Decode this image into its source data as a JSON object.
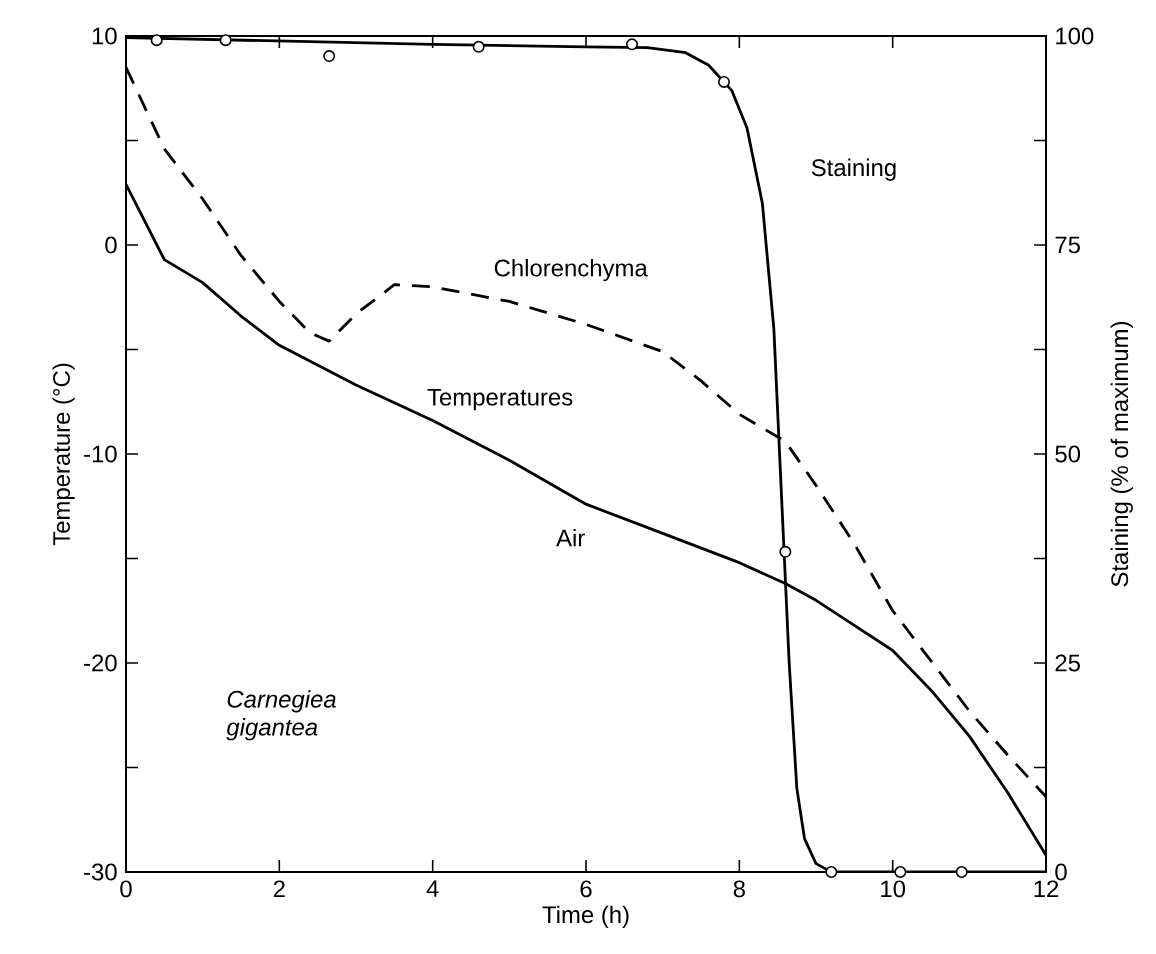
{
  "chart_data": {
    "type": "line",
    "xlabel": "Time (h)",
    "ylabel": "Temperature (°C)",
    "y2label": "Staining (% of maximum)",
    "xlim": [
      0,
      12
    ],
    "xticks": [
      0,
      2,
      4,
      6,
      8,
      10,
      12
    ],
    "ylim": [
      -30,
      10
    ],
    "yticks": [
      -30,
      {
        "value": -25,
        "label": null
      },
      -20,
      {
        "value": -15,
        "label": null
      },
      -10,
      {
        "value": -5,
        "label": null
      },
      0,
      {
        "value": 5,
        "label": null
      },
      10
    ],
    "y2lim": [
      0,
      100
    ],
    "y2ticks": [
      0,
      {
        "value": 12.5,
        "label": null
      },
      25,
      {
        "value": 37.5,
        "label": null
      },
      50,
      {
        "value": 62.5,
        "label": null
      },
      75,
      {
        "value": 87.5,
        "label": null
      },
      100
    ],
    "grid": false,
    "annotations": [
      "Temperatures",
      "Carnegiea gigantea"
    ],
    "series": [
      {
        "name": "Air",
        "type": "line",
        "color": "#000000",
        "line_style": "solid",
        "marker": "none",
        "x": [
          0,
          0.5,
          1,
          1.5,
          2,
          3,
          4,
          5,
          6,
          7,
          8,
          8.6,
          9,
          9.5,
          10,
          10.5,
          11,
          11.5,
          12
        ],
        "values": [
          2.9,
          -0.7,
          -1.8,
          -3.4,
          -4.8,
          -6.7,
          -8.4,
          -10.3,
          -12.4,
          -13.8,
          -15.2,
          -16.2,
          -17.0,
          -18.2,
          -19.4,
          -21.3,
          -23.5,
          -26.2,
          -29.2
        ]
      },
      {
        "name": "Chlorenchyma",
        "type": "line",
        "color": "#000000",
        "line_style": "dashed",
        "marker": "none",
        "x": [
          0,
          0.5,
          1,
          1.5,
          2,
          2.4,
          2.65,
          3,
          3.5,
          4,
          5,
          6,
          7,
          7.5,
          8,
          8.6,
          9,
          9.5,
          10,
          10.5,
          11,
          11.5,
          12
        ],
        "values": [
          8.5,
          4.6,
          2.2,
          -0.5,
          -2.7,
          -4.2,
          -4.6,
          -3.3,
          -1.9,
          -2.0,
          -2.7,
          -3.8,
          -5.1,
          -6.5,
          -8.1,
          -9.4,
          -11.5,
          -14.3,
          -17.5,
          -19.9,
          -22.3,
          -24.4,
          -26.4
        ]
      },
      {
        "name": "Staining",
        "type": "line",
        "axis": "y2",
        "color": "#000000",
        "line_style": "solid",
        "marker": "none",
        "x": [
          0,
          2,
          4,
          6,
          6.8,
          7.3,
          7.6,
          7.9,
          8.1,
          8.3,
          8.45,
          8.55,
          8.65,
          8.75,
          8.85,
          9.0,
          9.2,
          10,
          12
        ],
        "values": [
          99.8,
          99.4,
          99,
          98.7,
          98.6,
          98.0,
          96.5,
          93.5,
          89,
          80,
          65,
          45,
          25,
          10,
          4,
          1,
          0,
          0,
          0
        ]
      },
      {
        "type": "scatter",
        "axis": "y2",
        "color": "#000000",
        "marker": "circle",
        "x": [
          0.4,
          1.3,
          2.65,
          4.6,
          6.6,
          7.8,
          8.6,
          9.2,
          10.1,
          10.9
        ],
        "values": [
          99.5,
          99.5,
          97.6,
          98.7,
          99,
          94.5,
          38.3,
          0,
          0,
          0
        ]
      }
    ]
  }
}
